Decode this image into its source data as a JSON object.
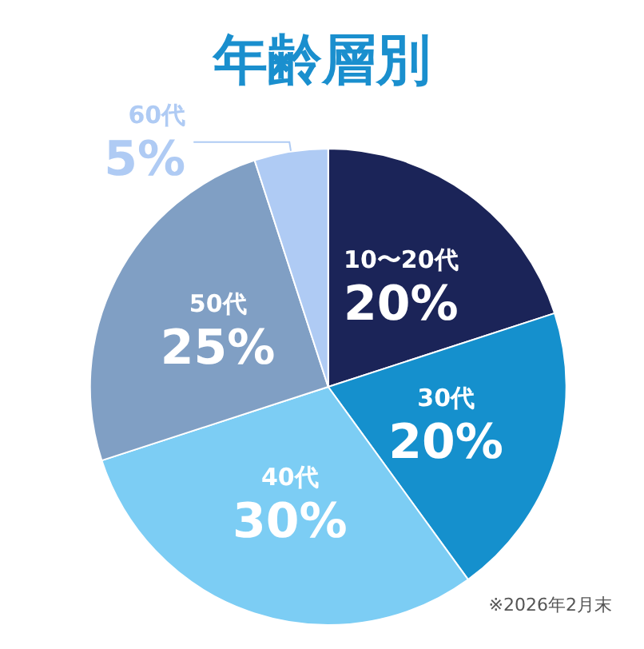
{
  "chart_data": {
    "type": "pie",
    "title": "年齢層別",
    "categories": [
      "10〜20代",
      "30代",
      "40代",
      "50代",
      "60代"
    ],
    "values": [
      20,
      20,
      30,
      25,
      5
    ],
    "colors": [
      "#1b2458",
      "#1590cd",
      "#7ccdf4",
      "#809fc4",
      "#afcbf4"
    ],
    "value_labels": [
      "20%",
      "20%",
      "30%",
      "25%",
      "5%"
    ],
    "legend": false,
    "annotations": [
      "※2026年2月末"
    ]
  }
}
